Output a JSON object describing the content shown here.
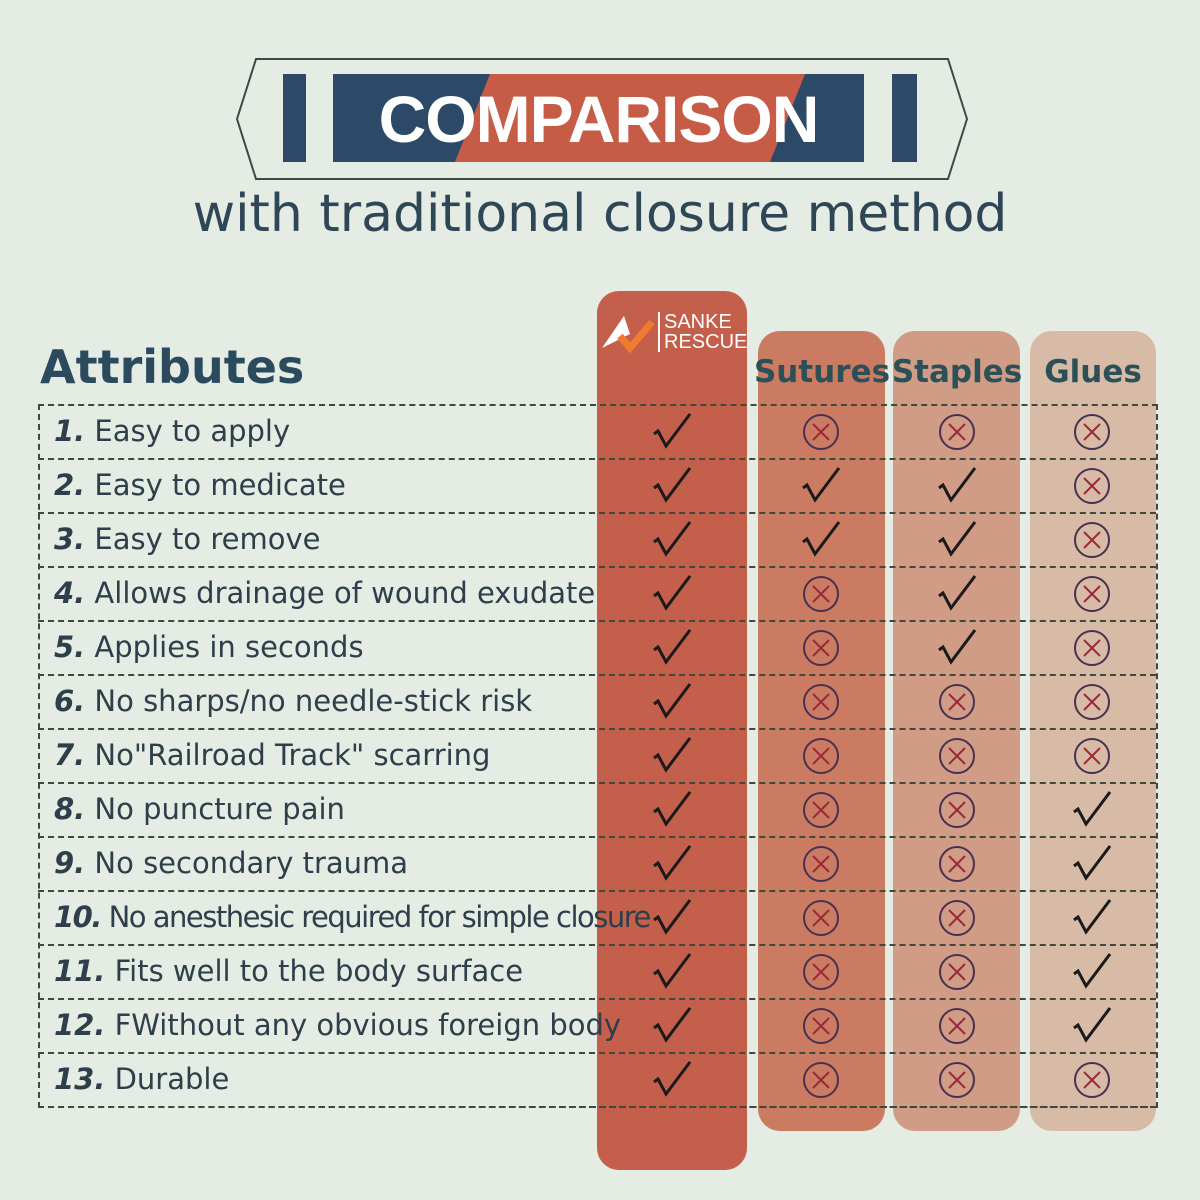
{
  "header": {
    "title": "COMPARISON",
    "subtitle": "with traditional closure method"
  },
  "colors": {
    "navy": "#2c4a68",
    "brand_red": "#c4604a",
    "sutures": "#cc7b63",
    "staples": "#d09c85",
    "glues": "#d7bba6",
    "background": "#e4ece4"
  },
  "table": {
    "attributes_heading": "Attributes",
    "brand_logo": {
      "line1": "SANKE",
      "line2": "RESCUE"
    },
    "columns": [
      "Sutures",
      "Staples",
      "Glues"
    ],
    "rows": [
      {
        "num": "1.",
        "label": "Easy to apply",
        "marks": [
          "check",
          "cross",
          "cross",
          "cross"
        ]
      },
      {
        "num": "2.",
        "label": "Easy to medicate",
        "marks": [
          "check",
          "check",
          "check",
          "cross"
        ]
      },
      {
        "num": "3.",
        "label": "Easy to remove",
        "marks": [
          "check",
          "check",
          "check",
          "cross"
        ]
      },
      {
        "num": "4.",
        "label": "Allows drainage of wound exudate",
        "marks": [
          "check",
          "cross",
          "check",
          "cross"
        ]
      },
      {
        "num": "5.",
        "label": "Applies in seconds",
        "marks": [
          "check",
          "cross",
          "check",
          "cross"
        ]
      },
      {
        "num": "6.",
        "label": "No sharps/no needle-stick risk",
        "marks": [
          "check",
          "cross",
          "cross",
          "cross"
        ]
      },
      {
        "num": "7.",
        "label": "No\"Railroad Track\" scarring",
        "marks": [
          "check",
          "cross",
          "cross",
          "cross"
        ]
      },
      {
        "num": "8.",
        "label": "No puncture pain",
        "marks": [
          "check",
          "cross",
          "cross",
          "check"
        ]
      },
      {
        "num": "9.",
        "label": "No secondary trauma",
        "marks": [
          "check",
          "cross",
          "cross",
          "check"
        ]
      },
      {
        "num": "10.",
        "label": "No anesthesic required for simple closure",
        "marks": [
          "check",
          "cross",
          "cross",
          "check"
        ]
      },
      {
        "num": "11.",
        "label": "Fits well to the body surface",
        "marks": [
          "check",
          "cross",
          "cross",
          "check"
        ]
      },
      {
        "num": "12.",
        "label": "FWithout any obvious foreign body",
        "marks": [
          "check",
          "cross",
          "cross",
          "check"
        ]
      },
      {
        "num": "13.",
        "label": "Durable",
        "marks": [
          "check",
          "cross",
          "cross",
          "cross"
        ]
      }
    ]
  }
}
